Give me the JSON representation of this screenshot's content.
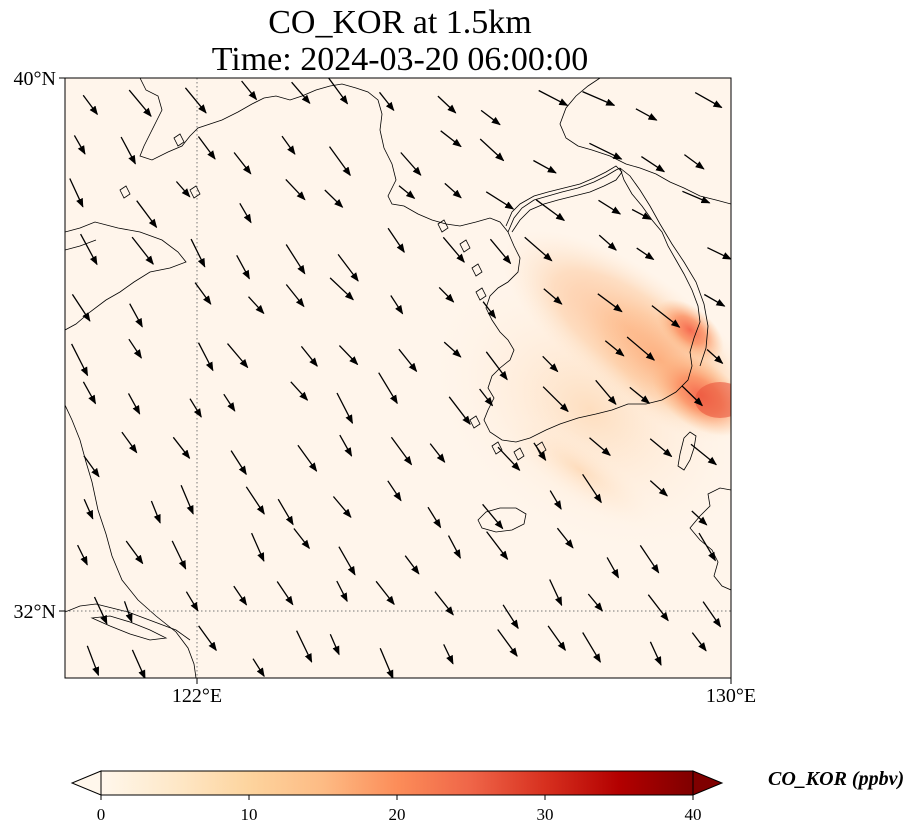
{
  "title": {
    "line1": "CO_KOR at 1.5km",
    "line2": "Time: 2024-03-20 06:00:00"
  },
  "map": {
    "variable": "CO_KOR",
    "level": "1.5km",
    "time": "2024-03-20 06:00:00",
    "extent": {
      "lon_min": 118.7,
      "lon_max": 130,
      "lat_min": 31.2,
      "lat_max": 40
    },
    "x_ticks": [
      {
        "value": 122,
        "label": "122°E"
      },
      {
        "value": 130,
        "label": "130°E"
      }
    ],
    "y_ticks": [
      {
        "value": 40,
        "label": "40°N"
      },
      {
        "value": 32,
        "label": "32°N"
      }
    ],
    "gridlines": {
      "style": "dotted",
      "lon": [
        122
      ],
      "lat": [
        32
      ]
    },
    "background_color": "#fff5eb",
    "coastline_color": "#000000",
    "wind_vector_color": "#000000",
    "plume_hotspot": {
      "lon": 129.7,
      "lat": 35.2,
      "max_ppbv": 20
    }
  },
  "colorbar": {
    "label": "CO_KOR (ppbv)",
    "min": 0,
    "max": 40,
    "ticks": [
      "0",
      "10",
      "20",
      "30",
      "40"
    ],
    "extend": "both",
    "colormap": "OrRd",
    "colors": [
      "#fff7ec",
      "#fee8c8",
      "#fdd49e",
      "#fdbb84",
      "#fc8d59",
      "#ef6548",
      "#d7301f",
      "#b30000",
      "#7f0000"
    ]
  }
}
